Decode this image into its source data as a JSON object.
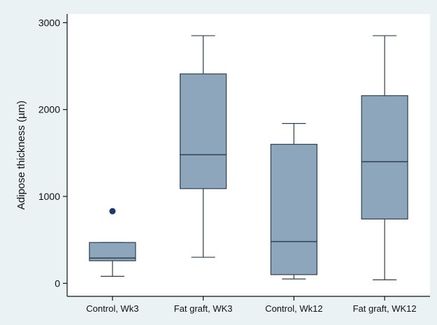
{
  "chart_data": {
    "type": "box",
    "title": "",
    "xlabel": "",
    "ylabel": "Adipose thickness (µm)",
    "ylim": [
      -150,
      3100
    ],
    "yticks": [
      0,
      1000,
      2000,
      3000
    ],
    "grid": false,
    "legend": "none",
    "colors": {
      "background": "#eaf2f3",
      "plot_area": "#ffffff",
      "box_fill": "#8ea6bc",
      "box_stroke": "#2f3f4f",
      "outlier": "#1b3a6b"
    },
    "categories": [
      "Control, Wk3",
      "Fat graft, WK3",
      "Control, Wk12",
      "Fat graft, WK12"
    ],
    "boxes": [
      {
        "whisker_low": 80,
        "q1": 260,
        "median": 290,
        "q3": 470,
        "whisker_high": 470,
        "outliers": [
          830
        ]
      },
      {
        "whisker_low": 300,
        "q1": 1090,
        "median": 1480,
        "q3": 2410,
        "whisker_high": 2850,
        "outliers": []
      },
      {
        "whisker_low": 50,
        "q1": 100,
        "median": 480,
        "q3": 1600,
        "whisker_high": 1840,
        "outliers": []
      },
      {
        "whisker_low": 40,
        "q1": 740,
        "median": 1400,
        "q3": 2160,
        "whisker_high": 2850,
        "outliers": []
      }
    ]
  }
}
